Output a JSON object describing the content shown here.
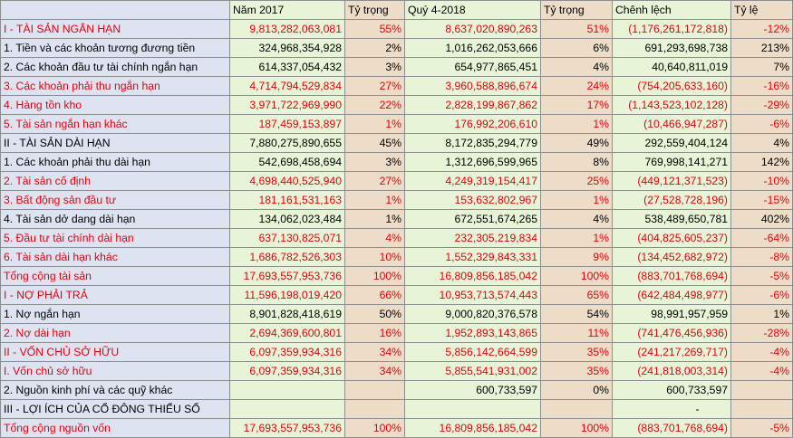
{
  "header": [
    "",
    "Năm 2017",
    "Tỷ trọng",
    "Quý 4-2018",
    "Tỷ trọng",
    "Chênh lệch",
    "Tỷ lệ"
  ],
  "rows": [
    {
      "label": "I - TÀI SẢN NGẮN HẠN",
      "v2017": "9,813,282,063,081",
      "w2017": "55%",
      "v2018": "8,637,020,890,263",
      "w2018": "51%",
      "diff": "(1,176,261,172,818)",
      "ratio": "-12%",
      "red": true,
      "indent": true
    },
    {
      "label": "1. Tiền và các khoản tương đương tiền",
      "v2017": "324,968,354,928",
      "w2017": "2%",
      "v2018": "1,016,262,053,666",
      "w2018": "6%",
      "diff": "691,293,698,738",
      "ratio": "213%",
      "red": false,
      "indent": false
    },
    {
      "label": "2. Các khoản đầu tư tài chính ngắn hạn",
      "v2017": "614,337,054,432",
      "w2017": "3%",
      "v2018": "654,977,865,451",
      "w2018": "4%",
      "diff": "40,640,811,019",
      "ratio": "7%",
      "red": false,
      "indent": false
    },
    {
      "label": "3. Các khoản phải thu ngắn hạn",
      "v2017": "4,714,794,529,834",
      "w2017": "27%",
      "v2018": "3,960,588,896,674",
      "w2018": "24%",
      "diff": "(754,205,633,160)",
      "ratio": "-16%",
      "red": true,
      "indent": false
    },
    {
      "label": "4. Hàng tồn kho",
      "v2017": "3,971,722,969,990",
      "w2017": "22%",
      "v2018": "2,828,199,867,862",
      "w2018": "17%",
      "diff": "(1,143,523,102,128)",
      "ratio": "-29%",
      "red": true,
      "indent": false
    },
    {
      "label": "5. Tài sản ngắn hạn khác",
      "v2017": "187,459,153,897",
      "w2017": "1%",
      "v2018": "176,992,206,610",
      "w2018": "1%",
      "diff": "(10,466,947,287)",
      "ratio": "-6%",
      "red": true,
      "indent": false
    },
    {
      "label": "II - TÀI SẢN DÀI HẠN",
      "v2017": "7,880,275,890,655",
      "w2017": "45%",
      "v2018": "8,172,835,294,779",
      "w2018": "49%",
      "diff": "292,559,404,124",
      "ratio": "4%",
      "red": false,
      "indent": true
    },
    {
      "label": "1. Các khoản phải thu dài hạn",
      "v2017": "542,698,458,694",
      "w2017": "3%",
      "v2018": "1,312,696,599,965",
      "w2018": "8%",
      "diff": "769,998,141,271",
      "ratio": "142%",
      "red": false,
      "indent": false
    },
    {
      "label": "2. Tài sản cố định",
      "v2017": "4,698,440,525,940",
      "w2017": "27%",
      "v2018": "4,249,319,154,417",
      "w2018": "25%",
      "diff": "(449,121,371,523)",
      "ratio": "-10%",
      "red": true,
      "indent": false
    },
    {
      "label": "3. Bất động sản đầu tư",
      "v2017": "181,161,531,163",
      "w2017": "1%",
      "v2018": "153,632,802,967",
      "w2018": "1%",
      "diff": "(27,528,728,196)",
      "ratio": "-15%",
      "red": true,
      "indent": false
    },
    {
      "label": "4. Tài sản dở dang dài hạn",
      "v2017": "134,062,023,484",
      "w2017": "1%",
      "v2018": "672,551,674,265",
      "w2018": "4%",
      "diff": "538,489,650,781",
      "ratio": "402%",
      "red": false,
      "indent": false
    },
    {
      "label": "5. Đầu tư tài chính dài hạn",
      "v2017": "637,130,825,071",
      "w2017": "4%",
      "v2018": "232,305,219,834",
      "w2018": "1%",
      "diff": "(404,825,605,237)",
      "ratio": "-64%",
      "red": true,
      "indent": false
    },
    {
      "label": "6. Tài sản dài hạn khác",
      "v2017": "1,686,782,526,303",
      "w2017": "10%",
      "v2018": "1,552,329,843,331",
      "w2018": "9%",
      "diff": "(134,452,682,972)",
      "ratio": "-8%",
      "red": true,
      "indent": false
    },
    {
      "label": "Tổng cộng tài sản",
      "v2017": "17,693,557,953,736",
      "w2017": "100%",
      "v2018": "16,809,856,185,042",
      "w2018": "100%",
      "diff": "(883,701,768,694)",
      "ratio": "-5%",
      "red": true,
      "indent": true
    },
    {
      "label": "I - NỢ PHẢI TRẢ",
      "v2017": "11,596,198,019,420",
      "w2017": "66%",
      "v2018": "10,953,713,574,443",
      "w2018": "65%",
      "diff": "(642,484,498,977)",
      "ratio": "-6%",
      "red": true,
      "indent": true
    },
    {
      "label": "1. Nợ ngắn hạn",
      "v2017": "8,901,828,418,619",
      "w2017": "50%",
      "v2018": "9,000,820,376,578",
      "w2018": "54%",
      "diff": "98,991,957,959",
      "ratio": "1%",
      "red": false,
      "indent": false
    },
    {
      "label": "2. Nợ dài hạn",
      "v2017": "2,694,369,600,801",
      "w2017": "16%",
      "v2018": "1,952,893,143,865",
      "w2018": "11%",
      "diff": "(741,476,456,936)",
      "ratio": "-28%",
      "red": true,
      "indent": false
    },
    {
      "label": "II - VỐN CHỦ SỞ HỮU",
      "v2017": "6,097,359,934,316",
      "w2017": "34%",
      "v2018": "5,856,142,664,599",
      "w2018": "35%",
      "diff": "(241,217,269,717)",
      "ratio": "-4%",
      "red": true,
      "indent": true
    },
    {
      "label": "I. Vốn chủ sở hữu",
      "v2017": "6,097,359,934,316",
      "w2017": "34%",
      "v2018": "5,855,541,931,002",
      "w2018": "35%",
      "diff": "(241,818,003,314)",
      "ratio": "-4%",
      "red": true,
      "indent": false
    },
    {
      "label": "2. Nguồn kinh phí và các quỹ khác",
      "v2017": "",
      "w2017": "",
      "v2018": "600,733,597",
      "w2018": "0%",
      "diff": "600,733,597",
      "ratio": "",
      "red": false,
      "indent": false
    },
    {
      "label": "III - LỢI ÍCH CỦA CỔ ĐÔNG THIỂU SỐ",
      "v2017": "",
      "w2017": "",
      "v2018": "",
      "w2018": "",
      "diff": "-",
      "ratio": "",
      "red": false,
      "indent": true
    },
    {
      "label": "Tổng cộng nguồn vốn",
      "v2017": "17,693,557,953,736",
      "w2017": "100%",
      "v2018": "16,809,856,185,042",
      "w2018": "100%",
      "diff": "(883,701,768,694)",
      "ratio": "-5%",
      "red": true,
      "indent": true
    }
  ]
}
